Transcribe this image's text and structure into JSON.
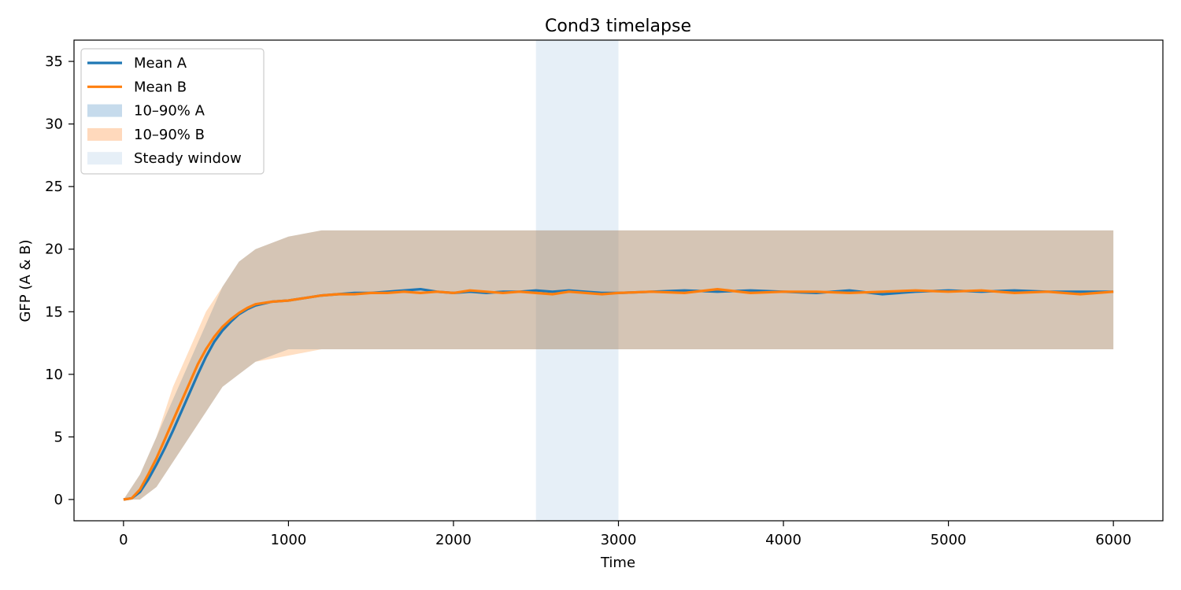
{
  "chart_data": {
    "type": "line",
    "title": "Cond3 timelapse",
    "xlabel": "Time",
    "ylabel": "GFP (A & B)",
    "xlim": [
      -300,
      6300
    ],
    "ylim": [
      -1.7,
      36.7
    ],
    "xticks": [
      0,
      1000,
      2000,
      3000,
      4000,
      5000,
      6000
    ],
    "yticks": [
      0,
      5,
      10,
      15,
      20,
      25,
      30,
      35
    ],
    "grid": false,
    "legend_position": "top-left",
    "steady_window": {
      "label": "Steady window",
      "x_range": [
        2500,
        3000
      ],
      "color": "#e6eff7"
    },
    "series": [
      {
        "name": "Mean A",
        "color": "#1f77b4",
        "x": [
          0,
          50,
          100,
          150,
          200,
          250,
          300,
          350,
          400,
          450,
          500,
          550,
          600,
          650,
          700,
          750,
          800,
          900,
          1000,
          1100,
          1200,
          1300,
          1400,
          1500,
          1600,
          1700,
          1800,
          1900,
          2000,
          2100,
          2200,
          2300,
          2400,
          2500,
          2600,
          2700,
          2800,
          2900,
          3000,
          3200,
          3400,
          3600,
          3800,
          4000,
          4200,
          4400,
          4600,
          4800,
          5000,
          5200,
          5400,
          5600,
          5800,
          6000
        ],
        "y": [
          0,
          0.1,
          0.6,
          1.6,
          2.8,
          4.1,
          5.5,
          7.0,
          8.5,
          10.0,
          11.4,
          12.6,
          13.5,
          14.2,
          14.8,
          15.2,
          15.5,
          15.8,
          15.9,
          16.1,
          16.3,
          16.4,
          16.5,
          16.5,
          16.6,
          16.7,
          16.8,
          16.6,
          16.5,
          16.6,
          16.5,
          16.6,
          16.6,
          16.7,
          16.6,
          16.7,
          16.6,
          16.5,
          16.5,
          16.6,
          16.7,
          16.6,
          16.7,
          16.6,
          16.5,
          16.7,
          16.4,
          16.6,
          16.7,
          16.6,
          16.7,
          16.6,
          16.6,
          16.6
        ]
      },
      {
        "name": "Mean B",
        "color": "#ff7f0e",
        "x": [
          0,
          50,
          100,
          150,
          200,
          250,
          300,
          350,
          400,
          450,
          500,
          550,
          600,
          650,
          700,
          750,
          800,
          900,
          1000,
          1100,
          1200,
          1300,
          1400,
          1500,
          1600,
          1700,
          1800,
          1900,
          2000,
          2100,
          2200,
          2300,
          2400,
          2500,
          2600,
          2700,
          2800,
          2900,
          3000,
          3200,
          3400,
          3600,
          3800,
          4000,
          4200,
          4400,
          4600,
          4800,
          5000,
          5200,
          5400,
          5600,
          5800,
          6000
        ],
        "y": [
          0,
          0.1,
          0.8,
          2.0,
          3.3,
          4.8,
          6.3,
          7.8,
          9.3,
          10.8,
          12.0,
          13.0,
          13.8,
          14.4,
          14.9,
          15.3,
          15.6,
          15.8,
          15.9,
          16.1,
          16.3,
          16.4,
          16.4,
          16.5,
          16.5,
          16.6,
          16.5,
          16.6,
          16.5,
          16.7,
          16.6,
          16.5,
          16.6,
          16.5,
          16.4,
          16.6,
          16.5,
          16.4,
          16.5,
          16.6,
          16.5,
          16.8,
          16.5,
          16.6,
          16.6,
          16.5,
          16.6,
          16.7,
          16.6,
          16.7,
          16.5,
          16.6,
          16.4,
          16.6
        ]
      }
    ],
    "bands": [
      {
        "name": "10–90% A",
        "color": "#1f77b4",
        "alpha": 0.25,
        "x": [
          0,
          100,
          200,
          300,
          400,
          500,
          600,
          700,
          800,
          1000,
          1200,
          6000
        ],
        "low": [
          0,
          0,
          1,
          3,
          5,
          7,
          9,
          10,
          11,
          12,
          12,
          12
        ],
        "high": [
          0,
          2,
          5,
          8,
          11,
          14,
          17,
          19,
          20,
          21,
          21.5,
          21.5
        ]
      },
      {
        "name": "10–90% B",
        "color": "#ff7f0e",
        "alpha": 0.25,
        "x": [
          0,
          100,
          200,
          300,
          400,
          500,
          600,
          700,
          800,
          1000,
          1200,
          6000
        ],
        "low": [
          0,
          0,
          1,
          3,
          5,
          7,
          9,
          10,
          11,
          11.5,
          12,
          12
        ],
        "high": [
          0,
          2,
          5,
          9,
          12,
          15,
          17,
          19,
          20,
          21,
          21.5,
          21.5
        ]
      }
    ],
    "legend": [
      {
        "label": "Mean A",
        "kind": "line",
        "color": "#1f77b4"
      },
      {
        "label": "Mean B",
        "kind": "line",
        "color": "#ff7f0e"
      },
      {
        "label": "10–90% A",
        "kind": "patch",
        "color": "#c6dbec"
      },
      {
        "label": "10–90% B",
        "kind": "patch",
        "color": "#ffd9bc"
      },
      {
        "label": "Steady window",
        "kind": "patch",
        "color": "#e6eff7"
      }
    ]
  }
}
